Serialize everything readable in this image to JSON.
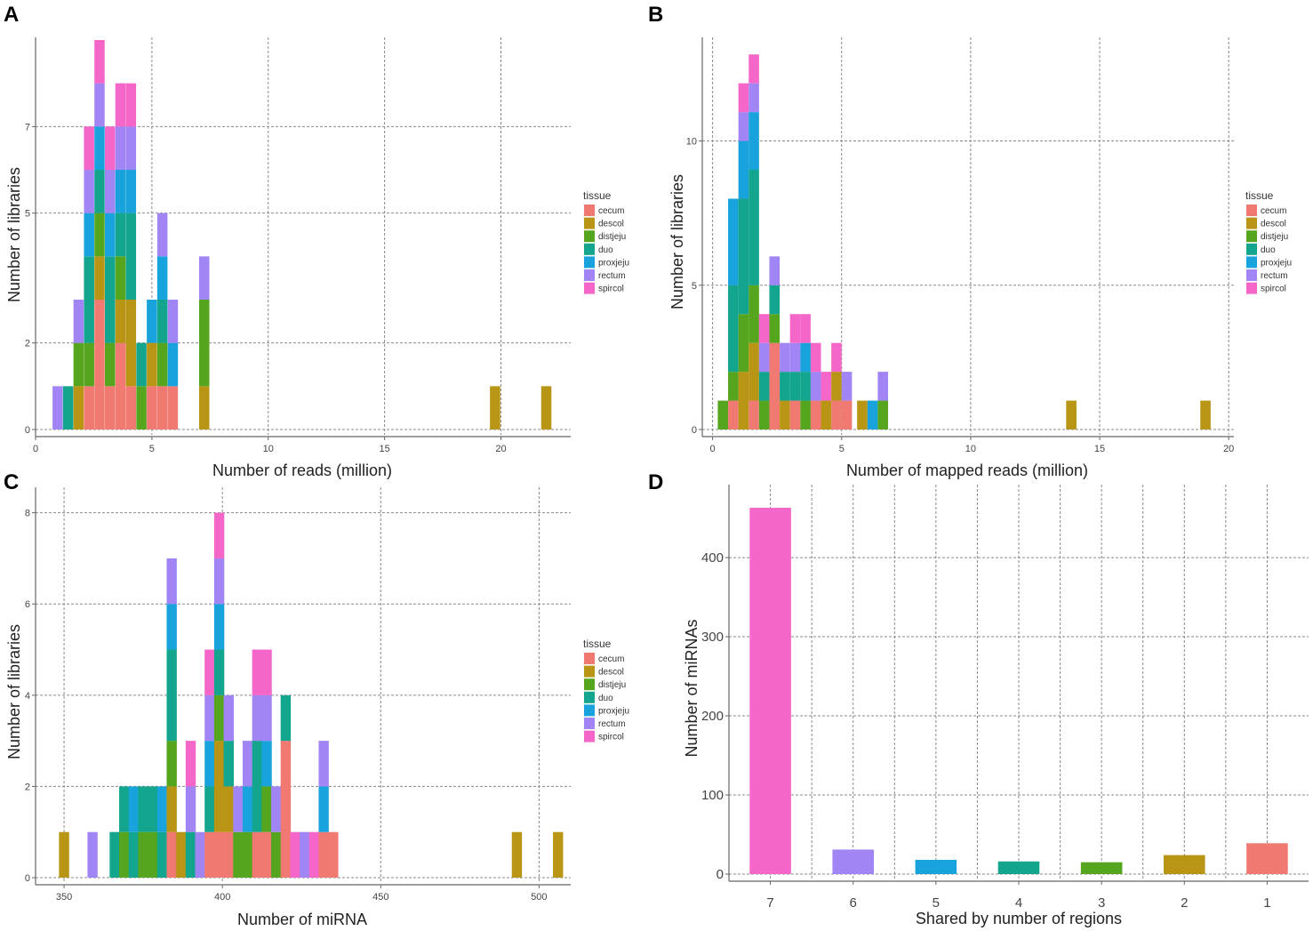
{
  "legend_title": "tissue",
  "tissues": [
    "cecum",
    "descol",
    "distjeju",
    "duo",
    "proxjeju",
    "rectum",
    "spircol"
  ],
  "colors": {
    "cecum": "#f07a72",
    "descol": "#b89514",
    "distjeju": "#55a61e",
    "duo": "#14a58f",
    "proxjeju": "#19a3dc",
    "rectum": "#a285f5",
    "spircol": "#f566c9"
  },
  "chart_data": [
    {
      "panel": "A",
      "type": "bar",
      "stacked": true,
      "xlabel": "Number of reads (million)",
      "ylabel": "Number of libraries",
      "xlim": [
        0,
        23
      ],
      "ylim": [
        0,
        9
      ],
      "xticks": [
        "0",
        "5",
        "10",
        "15",
        "20"
      ],
      "yticks": [
        "0",
        "2",
        "5",
        "7"
      ],
      "bin_width": 0.44,
      "bins": [
        {
          "x": 0.95,
          "stack": {
            "rectum": 1
          }
        },
        {
          "x": 1.4,
          "stack": {
            "duo": 1
          }
        },
        {
          "x": 1.85,
          "stack": {
            "rectum": 1,
            "distjeju": 1,
            "descol": 1
          }
        },
        {
          "x": 2.3,
          "stack": {
            "spircol": 1,
            "rectum": 1,
            "proxjeju": 1,
            "duo": 2,
            "distjeju": 1,
            "cecum": 1
          }
        },
        {
          "x": 2.75,
          "stack": {
            "spircol": 1,
            "rectum": 1,
            "proxjeju": 1,
            "duo": 1,
            "distjeju": 1,
            "descol": 1,
            "cecum": 3
          }
        },
        {
          "x": 3.2,
          "stack": {
            "spircol": 1,
            "rectum": 1,
            "proxjeju": 1,
            "duo": 2,
            "distjeju": 1,
            "cecum": 1
          }
        },
        {
          "x": 3.65,
          "stack": {
            "spircol": 1,
            "rectum": 1,
            "proxjeju": 1,
            "duo": 1,
            "distjeju": 1,
            "descol": 1,
            "cecum": 2
          }
        },
        {
          "x": 4.1,
          "stack": {
            "spircol": 1,
            "rectum": 1,
            "proxjeju": 1,
            "duo": 2,
            "descol": 2,
            "cecum": 1
          }
        },
        {
          "x": 4.55,
          "stack": {
            "duo": 1,
            "distjeju": 1
          }
        },
        {
          "x": 5.0,
          "stack": {
            "proxjeju": 1,
            "descol": 1,
            "cecum": 1
          }
        },
        {
          "x": 5.45,
          "stack": {
            "rectum": 1,
            "proxjeju": 1,
            "duo": 1,
            "distjeju": 1,
            "cecum": 1
          }
        },
        {
          "x": 5.9,
          "stack": {
            "rectum": 1,
            "proxjeju": 1,
            "cecum": 1
          }
        },
        {
          "x": 7.25,
          "stack": {
            "rectum": 1,
            "distjeju": 2,
            "descol": 1
          }
        },
        {
          "x": 19.75,
          "stack": {
            "descol": 1
          }
        },
        {
          "x": 21.95,
          "stack": {
            "descol": 1
          }
        }
      ]
    },
    {
      "panel": "B",
      "type": "bar",
      "stacked": true,
      "xlabel": "Number of mapped reads (million)",
      "ylabel": "Number of libraries",
      "xlim": [
        -0.4,
        20.2
      ],
      "ylim": [
        0,
        13.5
      ],
      "xticks": [
        "0",
        "5",
        "10",
        "15",
        "20"
      ],
      "yticks": [
        "0",
        "5",
        "10"
      ],
      "bin_width": 0.4,
      "bins": [
        {
          "x": 0.4,
          "stack": {
            "distjeju": 1
          }
        },
        {
          "x": 0.8,
          "stack": {
            "proxjeju": 3,
            "duo": 3,
            "distjeju": 1,
            "cecum": 1
          }
        },
        {
          "x": 1.2,
          "stack": {
            "spircol": 1,
            "rectum": 1,
            "proxjeju": 2,
            "duo": 4,
            "distjeju": 2,
            "descol": 2
          }
        },
        {
          "x": 1.6,
          "stack": {
            "spircol": 1,
            "rectum": 1,
            "proxjeju": 2,
            "duo": 4,
            "distjeju": 2,
            "descol": 2,
            "cecum": 1
          }
        },
        {
          "x": 2.0,
          "stack": {
            "spircol": 1,
            "rectum": 1,
            "duo": 1,
            "distjeju": 1
          }
        },
        {
          "x": 2.4,
          "stack": {
            "rectum": 1,
            "duo": 1,
            "distjeju": 1,
            "cecum": 3
          }
        },
        {
          "x": 2.8,
          "stack": {
            "rectum": 1,
            "duo": 1,
            "descol": 1
          }
        },
        {
          "x": 3.2,
          "stack": {
            "spircol": 1,
            "rectum": 1,
            "duo": 1,
            "cecum": 1
          }
        },
        {
          "x": 3.6,
          "stack": {
            "spircol": 1,
            "proxjeju": 1,
            "duo": 1,
            "distjeju": 1
          }
        },
        {
          "x": 4.0,
          "stack": {
            "spircol": 1,
            "rectum": 1,
            "cecum": 1
          }
        },
        {
          "x": 4.4,
          "stack": {
            "spircol": 1,
            "descol": 1
          }
        },
        {
          "x": 4.8,
          "stack": {
            "spircol": 1,
            "descol": 1,
            "cecum": 1
          }
        },
        {
          "x": 5.2,
          "stack": {
            "rectum": 1,
            "cecum": 1
          }
        },
        {
          "x": 5.8,
          "stack": {
            "descol": 1
          }
        },
        {
          "x": 6.2,
          "stack": {
            "proxjeju": 1
          }
        },
        {
          "x": 6.6,
          "stack": {
            "rectum": 1,
            "distjeju": 1
          }
        },
        {
          "x": 13.9,
          "stack": {
            "descol": 1
          }
        },
        {
          "x": 19.1,
          "stack": {
            "descol": 1
          }
        }
      ]
    },
    {
      "panel": "C",
      "type": "bar",
      "stacked": true,
      "xlabel": "Number of miRNA",
      "ylabel": "Number of libraries",
      "xlim": [
        341,
        510
      ],
      "ylim": [
        0,
        8.5
      ],
      "xticks": [
        "350",
        "400",
        "450",
        "500"
      ],
      "yticks": [
        "0",
        "2",
        "4",
        "6",
        "8"
      ],
      "bin_width": 3.2,
      "bins": [
        {
          "x": 350,
          "stack": {
            "descol": 1
          }
        },
        {
          "x": 359,
          "stack": {
            "rectum": 1
          }
        },
        {
          "x": 366,
          "stack": {
            "duo": 1
          }
        },
        {
          "x": 369,
          "stack": {
            "duo": 1,
            "distjeju": 1
          }
        },
        {
          "x": 372,
          "stack": {
            "duo": 1,
            "proxjeju": 1
          }
        },
        {
          "x": 375,
          "stack": {
            "duo": 1,
            "distjeju": 1
          }
        },
        {
          "x": 378,
          "stack": {
            "duo": 1,
            "distjeju": 1
          }
        },
        {
          "x": 381,
          "stack": {
            "proxjeju": 1,
            "duo": 1
          }
        },
        {
          "x": 384,
          "stack": {
            "rectum": 1,
            "proxjeju": 1,
            "duo": 2,
            "distjeju": 1,
            "descol": 1,
            "cecum": 1
          }
        },
        {
          "x": 387,
          "stack": {
            "descol": 1
          }
        },
        {
          "x": 390,
          "stack": {
            "spircol": 1,
            "rectum": 1,
            "duo": 1
          }
        },
        {
          "x": 393,
          "stack": {
            "rectum": 1
          }
        },
        {
          "x": 396,
          "stack": {
            "spircol": 1,
            "rectum": 1,
            "proxjeju": 1,
            "duo": 1,
            "cecum": 1
          }
        },
        {
          "x": 399,
          "stack": {
            "spircol": 1,
            "rectum": 1,
            "proxjeju": 1,
            "duo": 1,
            "distjeju": 1,
            "descol": 2,
            "cecum": 1
          }
        },
        {
          "x": 402,
          "stack": {
            "rectum": 1,
            "duo": 1,
            "descol": 1,
            "cecum": 1
          }
        },
        {
          "x": 405,
          "stack": {
            "rectum": 1,
            "distjeju": 1
          }
        },
        {
          "x": 408,
          "stack": {
            "rectum": 1,
            "proxjeju": 1,
            "distjeju": 1
          }
        },
        {
          "x": 411,
          "stack": {
            "spircol": 1,
            "rectum": 1,
            "duo": 2,
            "cecum": 1
          }
        },
        {
          "x": 414,
          "stack": {
            "spircol": 1,
            "rectum": 1,
            "proxjeju": 1,
            "distjeju": 1,
            "cecum": 1
          }
        },
        {
          "x": 417,
          "stack": {
            "rectum": 1,
            "distjeju": 1
          }
        },
        {
          "x": 420,
          "stack": {
            "duo": 1,
            "cecum": 3
          }
        },
        {
          "x": 423,
          "stack": {
            "spircol": 1
          }
        },
        {
          "x": 426,
          "stack": {
            "rectum": 1
          }
        },
        {
          "x": 429,
          "stack": {
            "spircol": 1
          }
        },
        {
          "x": 432,
          "stack": {
            "rectum": 1,
            "proxjeju": 1,
            "cecum": 1
          }
        },
        {
          "x": 435,
          "stack": {
            "cecum": 1
          }
        },
        {
          "x": 493,
          "stack": {
            "descol": 1
          }
        },
        {
          "x": 506,
          "stack": {
            "descol": 1
          }
        }
      ]
    },
    {
      "panel": "D",
      "type": "bar",
      "stacked": false,
      "xlabel": "Shared by number of regions",
      "ylabel": "Number of miRNAs",
      "ylim": [
        0,
        490
      ],
      "yticks": [
        "0",
        "100",
        "200",
        "300",
        "400"
      ],
      "categories": [
        "7",
        "6",
        "5",
        "4",
        "3",
        "2",
        "1"
      ],
      "values": [
        463,
        31,
        18,
        16,
        15,
        24,
        39
      ],
      "tissue_of_bar": [
        "spircol",
        "rectum",
        "proxjeju",
        "duo",
        "distjeju",
        "descol",
        "cecum"
      ]
    }
  ],
  "panel_letters": [
    "A",
    "B",
    "C",
    "D"
  ]
}
